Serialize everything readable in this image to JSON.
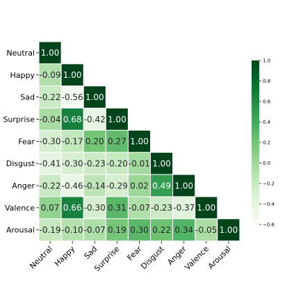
{
  "chart_data": {
    "type": "heatmap",
    "title": "",
    "xlabel": "",
    "ylabel": "",
    "labels": [
      "Neutral",
      "Happy",
      "Sad",
      "Surprise",
      "Fear",
      "Disgust",
      "Anger",
      "Valence",
      "Arousal"
    ],
    "matrix": [
      [
        1.0
      ],
      [
        -0.09,
        1.0
      ],
      [
        -0.22,
        -0.56,
        1.0
      ],
      [
        -0.04,
        0.68,
        -0.42,
        1.0
      ],
      [
        -0.3,
        -0.17,
        0.2,
        0.27,
        1.0
      ],
      [
        -0.41,
        -0.3,
        -0.23,
        -0.2,
        -0.01,
        1.0
      ],
      [
        -0.22,
        -0.46,
        -0.14,
        -0.29,
        0.02,
        0.49,
        1.0
      ],
      [
        0.07,
        0.66,
        -0.3,
        0.31,
        -0.07,
        -0.23,
        -0.37,
        1.0
      ],
      [
        -0.19,
        -0.1,
        -0.07,
        0.19,
        0.3,
        0.22,
        0.34,
        -0.05,
        1.0
      ]
    ],
    "mask": "upper-triangle",
    "colormap": "Greens",
    "vmin": -0.6,
    "vmax": 1.0,
    "colorbar_ticks": [
      -0.6,
      -0.4,
      -0.2,
      0.0,
      0.2,
      0.4,
      0.6,
      0.8,
      1.0
    ],
    "colorbar_tick_labels": [
      "−0.6",
      "−0.4",
      "−0.2",
      "0.0",
      "0.2",
      "0.4",
      "0.6",
      "0.8",
      "1.0"
    ],
    "value_format": "0.00",
    "cell_border_color": "#ffffff",
    "colorbar_placement": "right"
  }
}
